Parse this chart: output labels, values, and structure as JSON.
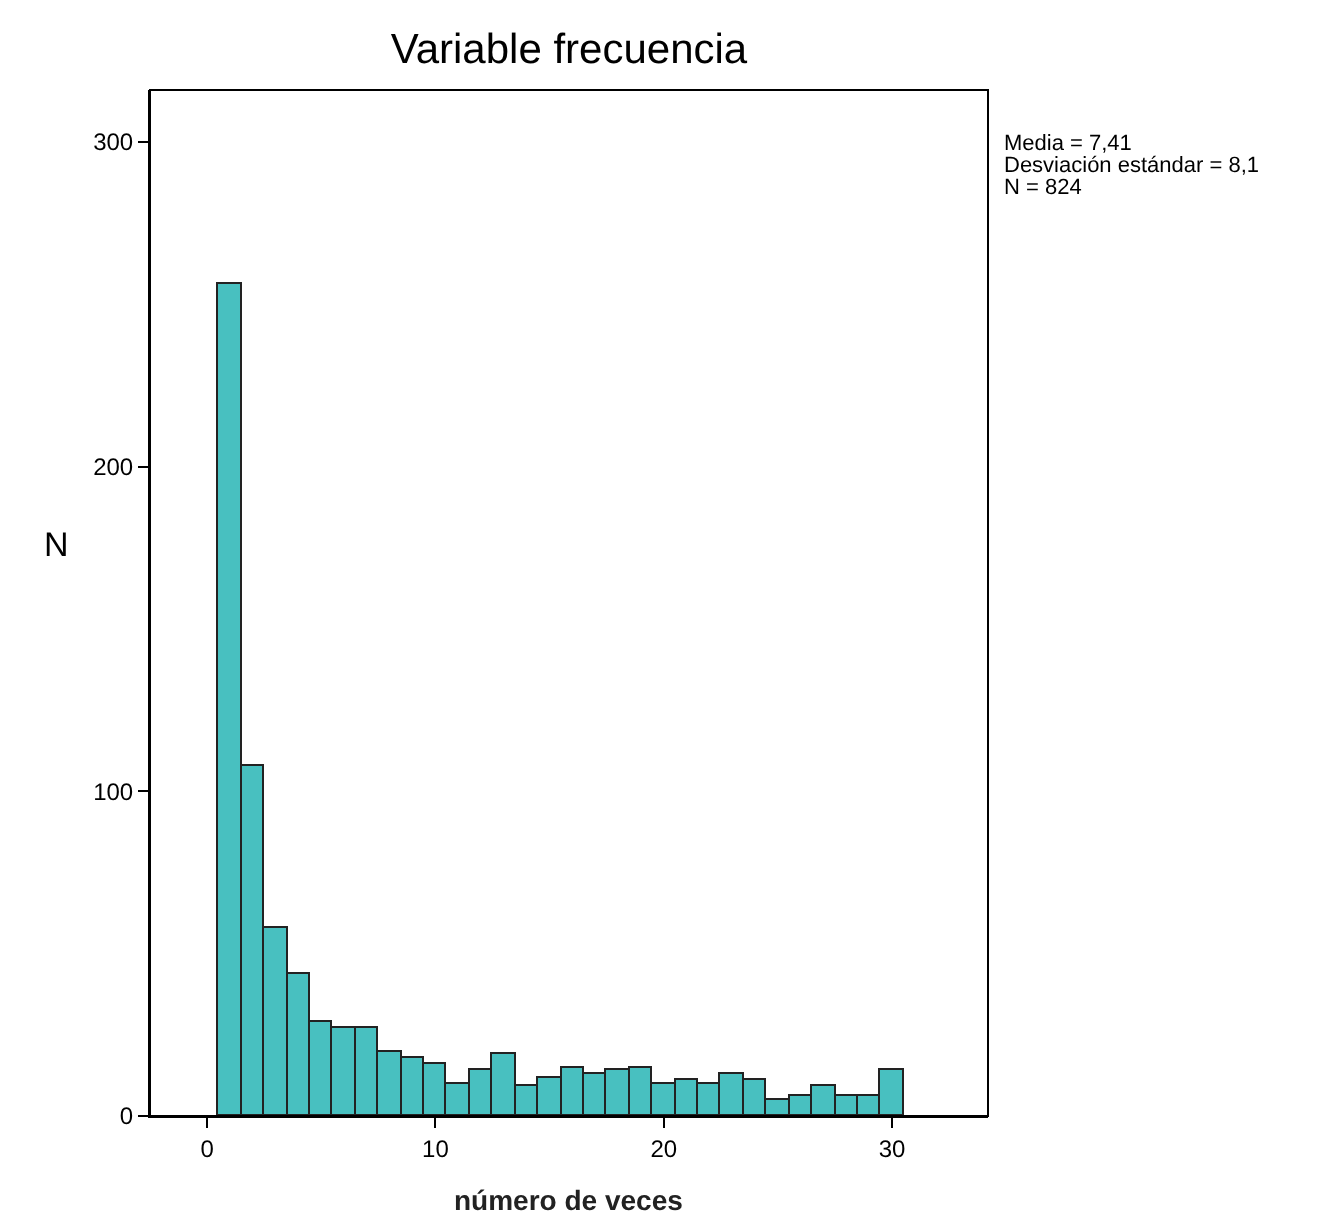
{
  "chart_data": {
    "type": "histogram",
    "title": "Variable frecuencia",
    "xlabel": "número de veces",
    "ylabel": "N",
    "bins": [
      0.5,
      1.5,
      2.5,
      3.5,
      4.5,
      5.5,
      6.5,
      7.5,
      8.5,
      9.5,
      10.5,
      11.5,
      12.5,
      13.5,
      14.5,
      15.5,
      16.5,
      17.5,
      18.5,
      19.5,
      20.5,
      21.5,
      22.5,
      23.5,
      24.5,
      25.5,
      26.5,
      27.5,
      28.5,
      29.5,
      30.5
    ],
    "values": [
      256,
      108,
      58,
      44,
      29,
      27,
      27,
      20,
      18,
      16,
      10,
      14,
      19,
      9,
      12,
      15,
      13,
      14,
      15,
      10,
      11,
      10,
      13,
      11,
      5,
      6,
      9,
      6,
      6,
      14
    ],
    "color": "#48c0c0",
    "xlim": [
      -2.5,
      34.2
    ],
    "ylim": [
      0,
      316
    ],
    "xticks": [
      0,
      10,
      20,
      30
    ],
    "yticks": [
      0,
      100,
      200,
      300
    ],
    "annotations": [
      "Media = 7,41",
      "Desviación estándar = 8,1",
      "N = 824"
    ]
  }
}
